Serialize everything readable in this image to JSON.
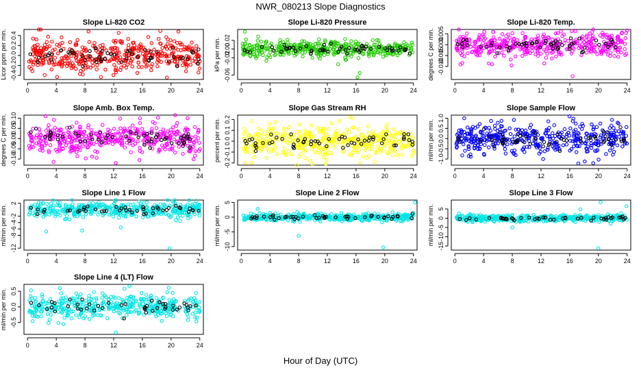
{
  "figure": {
    "title": "NWR_080213  Slope Diagnostics",
    "xlabel": "Hour of Day (UTC)"
  },
  "colors": {
    "red": "#ff0000",
    "green": "#22cc00",
    "magenta": "#ff00ff",
    "yellow": "#ffff00",
    "blue": "#0000ff",
    "cyan": "#00e5e5",
    "black": "#000000"
  },
  "chart_data": [
    {
      "type": "scatter",
      "title": "Slope Li-820 CO2",
      "ylabel": "Licor ppm per min.",
      "xlim": [
        -0.5,
        24.5
      ],
      "xticks": [
        "0",
        "4",
        "8",
        "12",
        "16",
        "20",
        "24"
      ],
      "xtick_values": [
        0,
        4,
        8,
        12,
        16,
        20,
        24
      ],
      "ylim": [
        -0.48,
        0.52
      ],
      "yticks": [
        "-0.4",
        "-0.2",
        "0.0",
        "0.2",
        "0.4"
      ],
      "ytick_values": [
        -0.4,
        -0.2,
        0,
        0.2,
        0.4
      ],
      "spread": 0.17,
      "outliers": [
        [
          8.5,
          0.48
        ],
        [
          12.7,
          0.45
        ],
        [
          18.5,
          0.49
        ],
        [
          19.4,
          -0.44
        ],
        [
          7.7,
          -0.38
        ],
        [
          15.3,
          -0.35
        ]
      ],
      "color": "red",
      "n": 420,
      "black_n": 55,
      "seed": 11
    },
    {
      "type": "scatter",
      "title": "Slope Li-820 Pressure",
      "ylabel": "kPa per min.",
      "xlim": [
        -0.5,
        24.5
      ],
      "xticks": [
        "0",
        "4",
        "8",
        "12",
        "16",
        "20",
        "24"
      ],
      "xtick_values": [
        0,
        4,
        8,
        12,
        16,
        20,
        24
      ],
      "ylim": [
        -0.07,
        0.045
      ],
      "yticks": [
        "-0.06",
        "-0.02",
        "0.00",
        "0.02"
      ],
      "ytick_values": [
        -0.06,
        -0.02,
        0,
        0.02
      ],
      "spread": 0.009,
      "outliers": [
        [
          16.2,
          -0.065
        ],
        [
          16.5,
          -0.055
        ],
        [
          0.5,
          0.04
        ],
        [
          13.5,
          -0.035
        ]
      ],
      "color": "green",
      "n": 420,
      "black_n": 55,
      "seed": 22
    },
    {
      "type": "scatter",
      "title": "Slope Li-820 Temp.",
      "ylabel": "degrees C per min.",
      "xlim": [
        -0.5,
        24.5
      ],
      "xticks": [
        "0",
        "4",
        "8",
        "12",
        "16",
        "20",
        "24"
      ],
      "xtick_values": [
        0,
        4,
        8,
        12,
        16,
        20,
        24
      ],
      "ylim": [
        -0.016,
        0.007
      ],
      "yticks": [
        "-0.010",
        "-0.005",
        "0.000",
        "0.005"
      ],
      "ytick_values": [
        -0.01,
        -0.005,
        0,
        0.005
      ],
      "spread": 0.0028,
      "outliers": [
        [
          16.4,
          -0.0145
        ],
        [
          16.8,
          0.0062
        ],
        [
          7.9,
          -0.0095
        ],
        [
          5.2,
          -0.009
        ]
      ],
      "color": "magenta",
      "n": 420,
      "black_n": 55,
      "seed": 33
    },
    {
      "type": "scatter",
      "title": "Slope Amb. Box Temp.",
      "ylabel": "degrees C per min.",
      "xlim": [
        -0.5,
        24.5
      ],
      "xticks": [
        "0",
        "4",
        "8",
        "12",
        "16",
        "20",
        "24"
      ],
      "xtick_values": [
        0,
        4,
        8,
        12,
        16,
        20,
        24
      ],
      "ylim": [
        -0.13,
        0.115
      ],
      "yticks": [
        "-0.10",
        "-0.05",
        "0.00",
        "0.05",
        "0.10"
      ],
      "ytick_values": [
        -0.1,
        -0.05,
        0,
        0.05,
        0.1
      ],
      "spread": 0.038,
      "outliers": [
        [
          12.3,
          -0.12
        ],
        [
          2.5,
          0.11
        ],
        [
          15.6,
          -0.105
        ],
        [
          22.3,
          0.1
        ]
      ],
      "color": "magenta",
      "n": 420,
      "black_n": 55,
      "seed": 44
    },
    {
      "type": "scatter",
      "title": "Slope Gas Stream RH",
      "ylabel": "percent per min.",
      "xlim": [
        -0.5,
        24.5
      ],
      "xticks": [
        "0",
        "4",
        "8",
        "12",
        "16",
        "20",
        "24"
      ],
      "xtick_values": [
        0,
        4,
        8,
        12,
        16,
        20,
        24
      ],
      "ylim": [
        -0.22,
        0.24
      ],
      "yticks": [
        "-0.2",
        "-0.1",
        "0.0",
        "0.1",
        "0.2"
      ],
      "ytick_values": [
        -0.2,
        -0.1,
        0,
        0.1,
        0.2
      ],
      "spread": 0.075,
      "outliers": [
        [
          15.2,
          0.22
        ],
        [
          0.5,
          -0.2
        ],
        [
          18.6,
          -0.19
        ],
        [
          9.6,
          -0.18
        ]
      ],
      "color": "yellow",
      "n": 420,
      "black_n": 55,
      "seed": 55
    },
    {
      "type": "scatter",
      "title": "Slope Sample Flow",
      "ylabel": "ml/min per min.",
      "xlim": [
        -0.5,
        24.5
      ],
      "xticks": [
        "0",
        "4",
        "8",
        "12",
        "16",
        "20",
        "24"
      ],
      "xtick_values": [
        0,
        4,
        8,
        12,
        16,
        20,
        24
      ],
      "ylim": [
        -1.3,
        1.15
      ],
      "yticks": [
        "-1.0",
        "-0.5",
        "0.0",
        "0.5",
        "1.0"
      ],
      "ytick_values": [
        -1,
        -0.5,
        0,
        0.5,
        1
      ],
      "spread": 0.38,
      "outliers": [
        [
          17.2,
          -1.22
        ],
        [
          18.1,
          -1.12
        ],
        [
          16.5,
          0.98
        ],
        [
          21.9,
          0.92
        ],
        [
          12.3,
          -1.0
        ]
      ],
      "color": "blue",
      "n": 420,
      "black_n": 55,
      "seed": 66
    },
    {
      "type": "scatter",
      "title": "Slope Line 1 Flow",
      "ylabel": "ml/min per min.",
      "xlim": [
        -0.5,
        24.5
      ],
      "xticks": [
        "0",
        "4",
        "8",
        "12",
        "16",
        "20",
        "24"
      ],
      "xtick_values": [
        0,
        4,
        8,
        12,
        16,
        20,
        24
      ],
      "ylim": [
        -12.6,
        3.0
      ],
      "yticks": [
        "-12",
        "-8",
        "-6",
        "-4",
        "-2",
        "2"
      ],
      "ytick_values": [
        -12,
        -8,
        -6,
        -4,
        -2,
        2
      ],
      "spread": 1.3,
      "outliers": [
        [
          19.8,
          -12.0
        ],
        [
          2.6,
          -6.8
        ],
        [
          7.6,
          -6.5
        ],
        [
          15.5,
          2.6
        ],
        [
          13.0,
          -5.5
        ]
      ],
      "color": "cyan",
      "n": 420,
      "black_n": 45,
      "seed": 77
    },
    {
      "type": "scatter",
      "title": "Slope Line 2 Flow",
      "ylabel": "ml/min per min.",
      "xlim": [
        -0.5,
        24.5
      ],
      "xticks": [
        "0",
        "4",
        "8",
        "12",
        "16",
        "20",
        "24"
      ],
      "xtick_values": [
        0,
        4,
        8,
        12,
        16,
        20,
        24
      ],
      "ylim": [
        -11.2,
        5.8
      ],
      "yticks": [
        "-10",
        "-5",
        "0",
        "5"
      ],
      "ytick_values": [
        -10,
        -5,
        0,
        5
      ],
      "spread": 0.6,
      "outliers": [
        [
          19.8,
          -10.3
        ],
        [
          8.0,
          -6.3
        ],
        [
          24.2,
          5.0
        ],
        [
          2.3,
          2.8
        ]
      ],
      "color": "cyan",
      "n": 420,
      "black_n": 45,
      "seed": 88
    },
    {
      "type": "scatter",
      "title": "Slope Line 3 Flow",
      "ylabel": "ml/min per min.",
      "xlim": [
        -0.5,
        24.5
      ],
      "xticks": [
        "0",
        "4",
        "8",
        "12",
        "16",
        "20",
        "24"
      ],
      "xtick_values": [
        0,
        4,
        8,
        12,
        16,
        20,
        24
      ],
      "ylim": [
        -17.2,
        9.8
      ],
      "yticks": [
        "-15",
        "-10",
        "-5",
        "0",
        "5"
      ],
      "ytick_values": [
        -15,
        -10,
        -5,
        0,
        5
      ],
      "spread": 0.9,
      "outliers": [
        [
          20.0,
          -16.2
        ],
        [
          20.3,
          8.6
        ],
        [
          8.0,
          -5.0
        ],
        [
          23.9,
          6.5
        ],
        [
          17.5,
          4.8
        ]
      ],
      "color": "cyan",
      "n": 420,
      "black_n": 45,
      "seed": 99
    },
    {
      "type": "scatter",
      "title": "Slope Line 4 (LT) Flow",
      "ylabel": "ml/min per min.",
      "xlim": [
        -0.5,
        24.5
      ],
      "xticks": [
        "0",
        "4",
        "8",
        "12",
        "16",
        "20",
        "24"
      ],
      "xtick_values": [
        0,
        4,
        8,
        12,
        16,
        20,
        24
      ],
      "ylim": [
        -0.88,
        0.72
      ],
      "yticks": [
        "-0.5",
        "0.0",
        "0.5"
      ],
      "ytick_values": [
        -0.5,
        0,
        0.5
      ],
      "spread": 0.19,
      "outliers": [
        [
          12.3,
          -0.82
        ],
        [
          14.2,
          0.66
        ],
        [
          13.5,
          0.58
        ],
        [
          5.0,
          -0.55
        ]
      ],
      "color": "cyan",
      "n": 420,
      "black_n": 45,
      "seed": 111
    }
  ]
}
